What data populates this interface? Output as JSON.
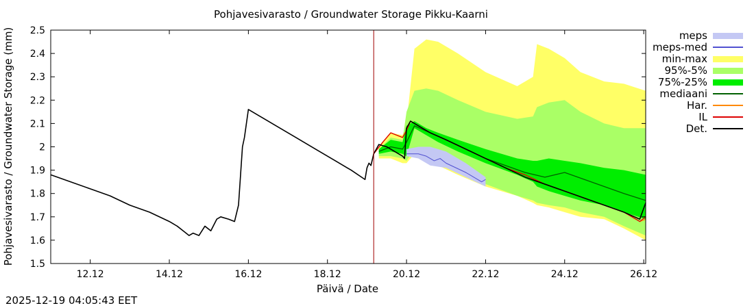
{
  "chart_data": {
    "type": "line",
    "title": "Pohjavesivarasto / Groundwater Storage   Pikku-Kaarni",
    "xlabel": "Päivä / Date",
    "ylabel": "Pohjavesivarasto / Groundwater Storage (mm)",
    "ylim": [
      1.5,
      2.5
    ],
    "xlim": [
      0,
      15.05
    ],
    "y_ticks": [
      "1.5",
      "1.6",
      "1.7",
      "1.8",
      "1.9",
      "2",
      "2.1",
      "2.2",
      "2.3",
      "2.4",
      "2.5"
    ],
    "x_ticks": [
      {
        "x": 1.0,
        "label": "12.12"
      },
      {
        "x": 3.0,
        "label": "14.12"
      },
      {
        "x": 5.0,
        "label": "16.12"
      },
      {
        "x": 7.0,
        "label": "18.12"
      },
      {
        "x": 9.0,
        "label": "20.12"
      },
      {
        "x": 11.0,
        "label": "22.12"
      },
      {
        "x": 13.0,
        "label": "24.12"
      },
      {
        "x": 15.0,
        "label": "26.12"
      }
    ],
    "forecast_start_x": 8.17,
    "legend": [
      {
        "key": "meps",
        "label": "meps",
        "kind": "band",
        "color": "#c4c8f4"
      },
      {
        "key": "meps_med",
        "label": "meps-med",
        "kind": "line",
        "color": "#5050d0"
      },
      {
        "key": "minmax",
        "label": "min-max",
        "kind": "band",
        "color": "#ffff66"
      },
      {
        "key": "p95_5",
        "label": "95%-5%",
        "kind": "band",
        "color": "#aaff66"
      },
      {
        "key": "p75_25",
        "label": "75%-25%",
        "kind": "band",
        "color": "#00ee00"
      },
      {
        "key": "median",
        "label": "mediaani",
        "kind": "line",
        "color": "#006000"
      },
      {
        "key": "har",
        "label": "Har.",
        "kind": "line",
        "color": "#ff8800"
      },
      {
        "key": "il",
        "label": "IL",
        "kind": "line",
        "color": "#dd0000"
      },
      {
        "key": "det",
        "label": "Det.",
        "kind": "line",
        "color": "#000000"
      }
    ],
    "bands": {
      "minmax": {
        "x": [
          8.3,
          8.6,
          8.9,
          9.0,
          9.2,
          9.5,
          9.8,
          10.3,
          11.0,
          11.8,
          12.2,
          12.3,
          12.6,
          13.0,
          13.4,
          14.0,
          14.5,
          15.05
        ],
        "upper": [
          2.0,
          2.06,
          2.05,
          2.1,
          2.42,
          2.46,
          2.45,
          2.4,
          2.32,
          2.26,
          2.3,
          2.44,
          2.42,
          2.38,
          2.32,
          2.28,
          2.27,
          2.24
        ],
        "lower": [
          1.95,
          1.95,
          1.93,
          1.93,
          1.97,
          1.94,
          1.92,
          1.88,
          1.83,
          1.79,
          1.76,
          1.75,
          1.74,
          1.72,
          1.7,
          1.69,
          1.65,
          1.6
        ]
      },
      "p95_5": {
        "x": [
          8.3,
          8.6,
          8.9,
          9.0,
          9.2,
          9.5,
          9.8,
          10.3,
          11.0,
          11.8,
          12.2,
          12.3,
          12.6,
          13.0,
          13.4,
          14.0,
          14.5,
          15.05
        ],
        "upper": [
          1.99,
          2.04,
          2.03,
          2.15,
          2.24,
          2.25,
          2.24,
          2.2,
          2.15,
          2.12,
          2.13,
          2.17,
          2.19,
          2.2,
          2.15,
          2.1,
          2.08,
          2.08
        ],
        "lower": [
          1.96,
          1.96,
          1.95,
          1.94,
          1.99,
          1.96,
          1.93,
          1.89,
          1.84,
          1.79,
          1.77,
          1.76,
          1.75,
          1.74,
          1.72,
          1.7,
          1.66,
          1.62
        ]
      },
      "p75_25": {
        "x": [
          8.3,
          8.6,
          8.9,
          9.0,
          9.2,
          9.5,
          9.8,
          10.3,
          11.0,
          11.8,
          12.2,
          12.3,
          12.6,
          13.0,
          13.4,
          14.0,
          14.5,
          15.05
        ],
        "upper": [
          1.99,
          2.03,
          2.02,
          2.09,
          2.11,
          2.08,
          2.06,
          2.03,
          1.99,
          1.95,
          1.94,
          1.94,
          1.95,
          1.94,
          1.93,
          1.91,
          1.9,
          1.88
        ],
        "lower": [
          1.97,
          1.98,
          1.97,
          1.96,
          2.08,
          2.05,
          2.02,
          1.98,
          1.93,
          1.88,
          1.85,
          1.83,
          1.81,
          1.79,
          1.77,
          1.75,
          1.72,
          1.69
        ]
      },
      "meps": {
        "x": [
          9.0,
          9.3,
          9.6,
          10.0,
          10.5,
          11.0
        ],
        "upper": [
          1.99,
          2.0,
          2.0,
          1.98,
          1.93,
          1.87
        ],
        "lower": [
          1.96,
          1.95,
          1.92,
          1.91,
          1.87,
          1.83
        ]
      }
    },
    "series": [
      {
        "name": "det",
        "color": "#000000",
        "x": [
          0.0,
          0.5,
          1.0,
          1.5,
          2.0,
          2.5,
          3.0,
          3.2,
          3.35,
          3.5,
          3.6,
          3.75,
          3.9,
          4.05,
          4.2,
          4.3,
          4.5,
          4.65,
          4.75,
          4.85,
          4.9,
          4.95,
          5.0,
          5.3,
          5.7,
          6.2,
          6.7,
          7.2,
          7.6,
          7.95,
          8.0,
          8.05,
          8.1,
          8.17,
          8.3,
          8.5,
          8.7,
          8.9,
          8.95,
          9.0,
          9.1,
          9.3,
          9.6,
          10.0,
          10.5,
          11.0,
          11.5,
          12.0,
          12.5,
          13.0,
          13.5,
          14.0,
          14.5,
          14.9,
          15.05
        ],
        "y": [
          1.88,
          1.85,
          1.82,
          1.79,
          1.75,
          1.72,
          1.68,
          1.66,
          1.64,
          1.62,
          1.63,
          1.62,
          1.66,
          1.64,
          1.69,
          1.7,
          1.69,
          1.68,
          1.75,
          2.0,
          2.04,
          2.1,
          2.16,
          2.13,
          2.09,
          2.04,
          1.99,
          1.94,
          1.9,
          1.86,
          1.91,
          1.93,
          1.92,
          1.97,
          2.01,
          2.0,
          1.98,
          1.96,
          1.95,
          2.08,
          2.11,
          2.09,
          2.06,
          2.03,
          1.99,
          1.95,
          1.91,
          1.87,
          1.84,
          1.81,
          1.78,
          1.75,
          1.72,
          1.69,
          1.76
        ]
      },
      {
        "name": "median",
        "color": "#006000",
        "x": [
          8.3,
          8.6,
          8.9,
          9.0,
          9.2,
          9.6,
          10.0,
          10.5,
          11.0,
          11.5,
          12.0,
          12.5,
          13.0,
          13.5,
          14.0,
          14.5,
          15.05
        ],
        "y": [
          1.98,
          2.0,
          1.99,
          2.02,
          2.09,
          2.06,
          2.03,
          1.99,
          1.95,
          1.92,
          1.89,
          1.87,
          1.89,
          1.86,
          1.83,
          1.8,
          1.77
        ]
      },
      {
        "name": "il",
        "color": "#dd0000",
        "x": [
          8.17,
          8.4,
          8.6,
          8.9,
          9.0,
          9.1,
          9.3,
          9.6,
          10.0,
          10.5,
          11.0,
          11.5,
          12.0,
          12.5,
          13.0,
          13.5,
          14.0,
          14.5,
          14.9,
          15.05
        ],
        "y": [
          1.97,
          2.02,
          2.06,
          2.04,
          2.07,
          2.11,
          2.09,
          2.06,
          2.03,
          1.99,
          1.95,
          1.91,
          1.88,
          1.84,
          1.81,
          1.78,
          1.75,
          1.72,
          1.68,
          1.7
        ]
      },
      {
        "name": "har",
        "color": "#ff8800",
        "x": [
          8.17,
          8.4,
          8.6,
          8.9,
          9.0,
          9.1,
          9.3,
          9.6,
          10.0,
          10.5,
          11.0,
          11.5,
          12.0,
          12.5,
          13.0,
          13.5,
          14.0,
          14.5,
          14.9,
          15.05
        ],
        "y": [
          1.97,
          2.02,
          2.06,
          2.04,
          2.07,
          2.11,
          2.09,
          2.06,
          2.03,
          1.99,
          1.95,
          1.91,
          1.88,
          1.84,
          1.81,
          1.78,
          1.75,
          1.72,
          1.68,
          1.69
        ]
      },
      {
        "name": "meps_med",
        "color": "#5050d0",
        "x": [
          9.0,
          9.3,
          9.5,
          9.6,
          9.7,
          9.85,
          10.0,
          10.5,
          10.9,
          11.0
        ],
        "y": [
          1.97,
          1.97,
          1.96,
          1.95,
          1.94,
          1.95,
          1.93,
          1.89,
          1.85,
          1.86
        ]
      }
    ]
  },
  "timestamp": "2025-12-19 04:05:43 EET"
}
